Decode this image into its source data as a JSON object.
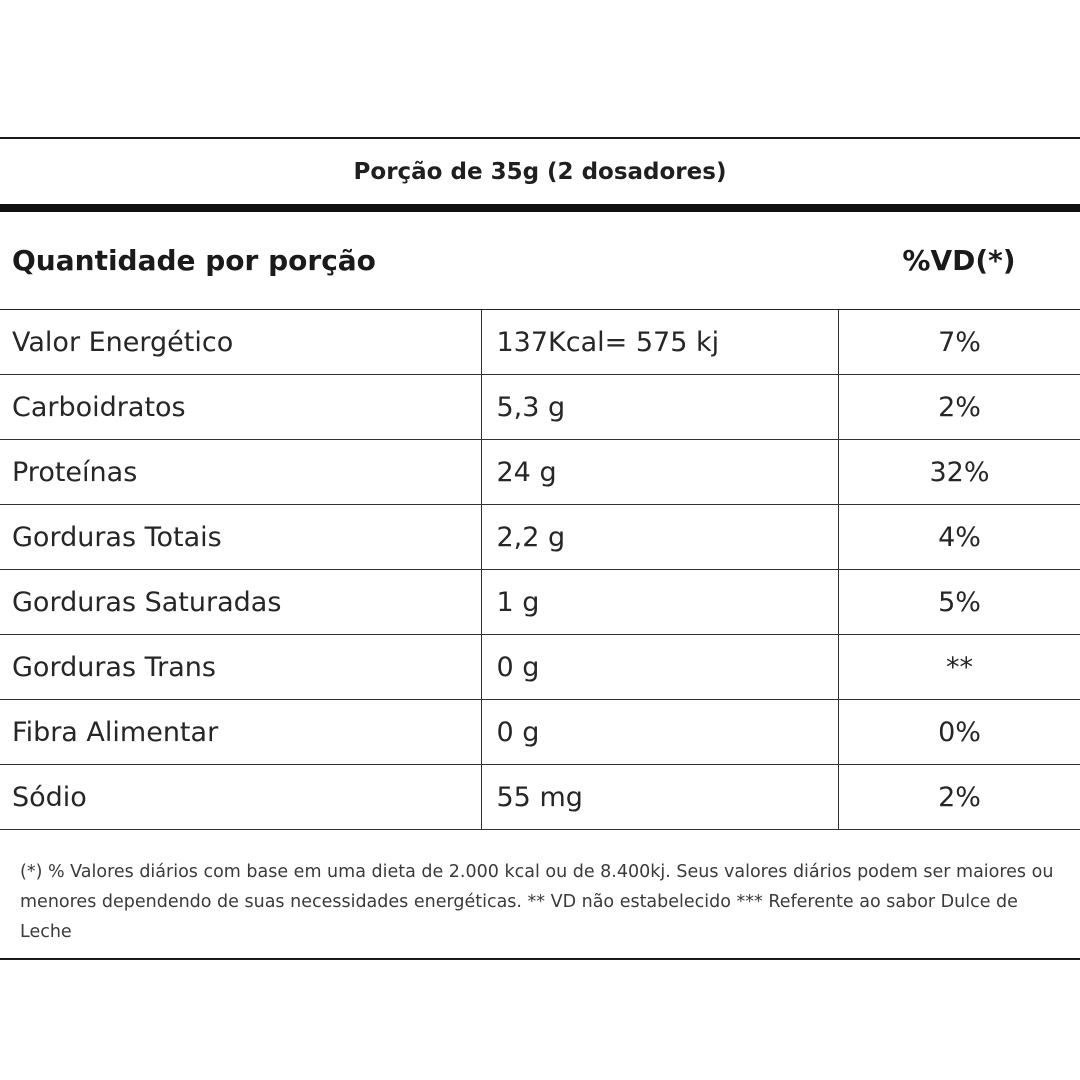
{
  "label": {
    "portion": "Porção de 35g (2 dosadores)",
    "header": {
      "quantity_label": "Quantidade por porção",
      "vd_label": "%VD(*)"
    },
    "rows": [
      {
        "name": "Valor Energético",
        "amount": "137Kcal= 575 kj",
        "vd": "7%"
      },
      {
        "name": "Carboidratos",
        "amount": "5,3 g",
        "vd": "2%"
      },
      {
        "name": "Proteínas",
        "amount": "24 g",
        "vd": "32%"
      },
      {
        "name": "Gorduras Totais",
        "amount": "2,2 g",
        "vd": "4%"
      },
      {
        "name": "Gorduras Saturadas",
        "amount": "1 g",
        "vd": "5%"
      },
      {
        "name": "Gorduras Trans",
        "amount": "0 g",
        "vd": "**"
      },
      {
        "name": "Fibra Alimentar",
        "amount": "0 g",
        "vd": "0%"
      },
      {
        "name": "Sódio",
        "amount": "55 mg",
        "vd": "2%"
      }
    ],
    "footnote": "(*) % Valores diários com base em uma dieta de 2.000 kcal ou de 8.400kj. Seus valores diários podem ser maiores ou menores dependendo de suas necessidades energéticas. ** VD não estabelecido *** Referente ao sabor Dulce de Leche"
  }
}
